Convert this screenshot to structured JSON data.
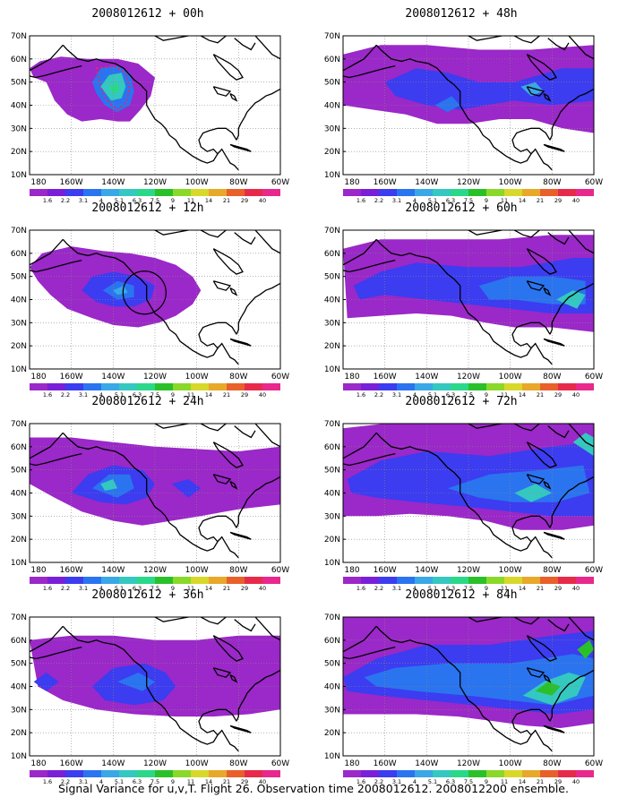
{
  "figure": {
    "caption": "Signal Variance for u,v,T. Flight 26. Observation time 2008012612. 2008012200 ensemble."
  },
  "colorbar": {
    "labels": [
      "1.6",
      "2.2",
      "3.1",
      "4",
      "5.1",
      "6.3",
      "7.5",
      "9",
      "11",
      "14",
      "21",
      "29",
      "40"
    ],
    "colors": [
      "#9b28c8",
      "#7a1fd8",
      "#3c3cf0",
      "#2a74f0",
      "#3aa7e6",
      "#34c8c0",
      "#2ad88a",
      "#2ac02a",
      "#8ad82a",
      "#d8d82a",
      "#e8a82a",
      "#e8602a",
      "#e82a4a",
      "#e8288c"
    ]
  },
  "axes": {
    "x_ticks": [
      "180",
      "160W",
      "140W",
      "120W",
      "100W",
      "80W",
      "60W"
    ],
    "y_ticks": [
      "10N",
      "20N",
      "30N",
      "40N",
      "50N",
      "60N",
      "70N"
    ]
  },
  "chart_data": [
    {
      "type": "heatmap",
      "title": "2008012612 + 00h",
      "lead": "00h",
      "x_range": [
        "180",
        "60W"
      ],
      "y_range": [
        "10N",
        "70N"
      ],
      "peak_level": "7.5"
    },
    {
      "type": "heatmap",
      "title": "2008012612 + 12h",
      "lead": "12h",
      "x_range": [
        "180",
        "60W"
      ],
      "y_range": [
        "10N",
        "70N"
      ],
      "peak_level": "5.1"
    },
    {
      "type": "heatmap",
      "title": "2008012612 + 24h",
      "lead": "24h",
      "x_range": [
        "180",
        "60W"
      ],
      "y_range": [
        "10N",
        "70N"
      ],
      "peak_level": "7.5"
    },
    {
      "type": "heatmap",
      "title": "2008012612 + 36h",
      "lead": "36h",
      "x_range": [
        "180",
        "60W"
      ],
      "y_range": [
        "10N",
        "70N"
      ],
      "peak_level": "5.1"
    },
    {
      "type": "heatmap",
      "title": "2008012612 + 48h",
      "lead": "48h",
      "x_range": [
        "180",
        "60W"
      ],
      "y_range": [
        "10N",
        "70N"
      ],
      "peak_level": "6.3"
    },
    {
      "type": "heatmap",
      "title": "2008012612 + 60h",
      "lead": "60h",
      "x_range": [
        "180",
        "60W"
      ],
      "y_range": [
        "10N",
        "70N"
      ],
      "peak_level": "7.5"
    },
    {
      "type": "heatmap",
      "title": "2008012612 + 72h",
      "lead": "72h",
      "x_range": [
        "180",
        "60W"
      ],
      "y_range": [
        "10N",
        "70N"
      ],
      "peak_level": "7.5"
    },
    {
      "type": "heatmap",
      "title": "2008012612 + 84h",
      "lead": "84h",
      "x_range": [
        "180",
        "60W"
      ],
      "y_range": [
        "10N",
        "70N"
      ],
      "peak_level": "9"
    }
  ]
}
